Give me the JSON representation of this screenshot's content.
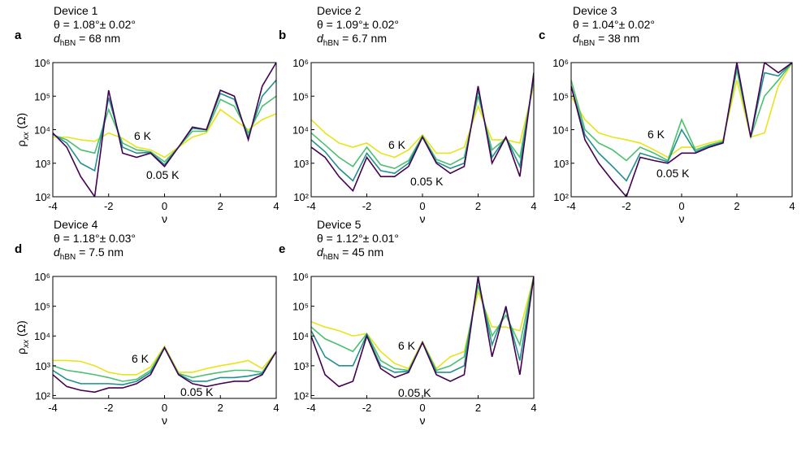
{
  "chart_data": [
    {
      "type": "line",
      "panel": "a",
      "device": "Device 1",
      "angle": "θ = 1.08°± 0.02°",
      "thickness": {
        "symbol": "d",
        "subscript": "hBN",
        "text": " = 68 nm"
      },
      "y_label": {
        "symbol": "ρ",
        "subscript": "xx",
        "unit": " (Ω)"
      },
      "x_label": "ν",
      "log_y": true,
      "annotations": [
        "6 K",
        "0.05 K"
      ],
      "xlim": [
        -4,
        4
      ],
      "xticks": [
        -4,
        -2,
        0,
        2,
        4
      ],
      "ylim": [
        100,
        1000000
      ],
      "yticks": [
        {
          "value": 100,
          "label": "10²"
        },
        {
          "value": 1000,
          "label": "10³"
        },
        {
          "value": 10000,
          "label": "10⁴"
        },
        {
          "value": 100000,
          "label": "10⁵"
        },
        {
          "value": 1000000,
          "label": "10⁶"
        }
      ],
      "x": [
        -4,
        -3.5,
        -3,
        -2.5,
        -2,
        -1.5,
        -1,
        -0.5,
        0,
        0.5,
        1,
        1.5,
        2,
        2.5,
        3,
        3.5,
        4
      ],
      "series": [
        {
          "color": "#e8e419",
          "values": [
            6000,
            6000,
            5000,
            4500,
            8000,
            5500,
            3000,
            2500,
            1500,
            3000,
            6000,
            8000,
            40000,
            20000,
            10000,
            20000,
            30000
          ]
        },
        {
          "color": "#4ac16d",
          "values": [
            7000,
            5000,
            2500,
            2000,
            40000,
            4000,
            2500,
            2200,
            1100,
            3000,
            9000,
            9000,
            80000,
            50000,
            8000,
            50000,
            100000
          ]
        },
        {
          "color": "#22908d",
          "values": [
            7500,
            4000,
            1000,
            600,
            90000,
            3000,
            2000,
            2100,
            900,
            3000,
            11000,
            10000,
            120000,
            80000,
            6000,
            100000,
            300000
          ]
        },
        {
          "color": "#440154",
          "values": [
            8000,
            3000,
            400,
            100,
            150000,
            2000,
            1500,
            2000,
            800,
            3000,
            12000,
            10000,
            150000,
            100000,
            5000,
            200000,
            1000000
          ]
        }
      ]
    },
    {
      "type": "line",
      "panel": "b",
      "device": "Device 2",
      "angle": "θ = 1.09°± 0.02°",
      "thickness": {
        "symbol": "d",
        "subscript": "hBN",
        "text": " = 6.7 nm"
      },
      "x_label": "ν",
      "log_y": true,
      "annotations": [
        "6 K",
        "0.05 K"
      ],
      "xlim": [
        -4,
        4
      ],
      "xticks": [
        -4,
        -2,
        0,
        2,
        4
      ],
      "ylim": [
        100,
        1000000
      ],
      "yticks": [
        {
          "value": 100,
          "label": "10²"
        },
        {
          "value": 1000,
          "label": "10³"
        },
        {
          "value": 10000,
          "label": "10⁴"
        },
        {
          "value": 100000,
          "label": "10⁵"
        },
        {
          "value": 1000000,
          "label": "10⁶"
        }
      ],
      "x": [
        -4,
        -3.5,
        -3,
        -2.5,
        -2,
        -1.5,
        -1,
        -0.5,
        0,
        0.5,
        1,
        1.5,
        2,
        2.5,
        3,
        3.5,
        4
      ],
      "series": [
        {
          "color": "#e8e419",
          "values": [
            20000,
            8000,
            4000,
            3000,
            4000,
            2000,
            1500,
            2500,
            7000,
            2000,
            2000,
            3000,
            50000,
            5000,
            5000,
            4000,
            200000
          ]
        },
        {
          "color": "#4ac16d",
          "values": [
            8000,
            3500,
            1500,
            800,
            3000,
            900,
            700,
            1200,
            6500,
            1300,
            900,
            1500,
            100000,
            2500,
            5500,
            1500,
            300000
          ]
        },
        {
          "color": "#22908d",
          "values": [
            5000,
            2200,
            700,
            300,
            2000,
            600,
            500,
            1000,
            6200,
            1100,
            700,
            1000,
            150000,
            1500,
            6000,
            800,
            400000
          ]
        },
        {
          "color": "#440154",
          "values": [
            3000,
            1500,
            400,
            150,
            1500,
            400,
            400,
            800,
            6000,
            1000,
            500,
            800,
            200000,
            1000,
            6000,
            400,
            500000
          ]
        }
      ]
    },
    {
      "type": "line",
      "panel": "c",
      "device": "Device 3",
      "angle": "θ = 1.04°± 0.02°",
      "thickness": {
        "symbol": "d",
        "subscript": "hBN",
        "text": " = 38 nm"
      },
      "x_label": "ν",
      "log_y": true,
      "annotations": [
        "6 K",
        "0.05 K"
      ],
      "xlim": [
        -4,
        4
      ],
      "xticks": [
        -4,
        -2,
        0,
        2,
        4
      ],
      "ylim": [
        100,
        1000000
      ],
      "yticks": [
        {
          "value": 100,
          "label": "10²"
        },
        {
          "value": 1000,
          "label": "10³"
        },
        {
          "value": 10000,
          "label": "10⁴"
        },
        {
          "value": 100000,
          "label": "10⁵"
        },
        {
          "value": 1000000,
          "label": "10⁶"
        }
      ],
      "x": [
        -4,
        -3.5,
        -3,
        -2.5,
        -2,
        -1.5,
        -1,
        -0.5,
        0,
        0.5,
        1,
        1.5,
        2,
        2.5,
        3,
        3.5,
        4
      ],
      "series": [
        {
          "color": "#e8e419",
          "values": [
            100000,
            20000,
            8000,
            6000,
            5000,
            4000,
            2500,
            1500,
            3000,
            3000,
            4000,
            5000,
            300000,
            6000,
            8000,
            200000,
            1000000
          ]
        },
        {
          "color": "#4ac16d",
          "values": [
            300000,
            10000,
            4000,
            2500,
            1200,
            3000,
            2000,
            1200,
            20000,
            2500,
            3500,
            4500,
            600000,
            6000,
            100000,
            300000,
            1000000
          ]
        },
        {
          "color": "#22908d",
          "values": [
            200000,
            7000,
            2000,
            800,
            300,
            2000,
            1500,
            1100,
            10000,
            2200,
            3200,
            4200,
            800000,
            6000,
            500000,
            400000,
            1000000
          ]
        },
        {
          "color": "#440154",
          "values": [
            200000,
            5000,
            1000,
            300,
            100,
            1500,
            1200,
            1000,
            2000,
            2000,
            3000,
            4000,
            1000000,
            6000,
            1000000,
            500000,
            1000000
          ]
        }
      ]
    },
    {
      "type": "line",
      "panel": "d",
      "device": "Device 4",
      "angle": "θ = 1.18°± 0.03°",
      "thickness": {
        "symbol": "d",
        "subscript": "hBN",
        "text": " = 7.5 nm"
      },
      "y_label": {
        "symbol": "ρ",
        "subscript": "xx",
        "unit": " (Ω)"
      },
      "x_label": "ν",
      "log_y": true,
      "annotations": [
        "6 K",
        "0.05 K"
      ],
      "xlim": [
        -4,
        4
      ],
      "xticks": [
        -4,
        -2,
        0,
        2,
        4
      ],
      "ylim": [
        80,
        1000000
      ],
      "yticks": [
        {
          "value": 100,
          "label": "10²"
        },
        {
          "value": 1000,
          "label": "10³"
        },
        {
          "value": 10000,
          "label": "10⁴"
        },
        {
          "value": 100000,
          "label": "10⁵"
        },
        {
          "value": 1000000,
          "label": "10⁶"
        }
      ],
      "x": [
        -4,
        -3.5,
        -3,
        -2.5,
        -2,
        -1.5,
        -1,
        -0.5,
        0,
        0.5,
        1,
        1.5,
        2,
        2.5,
        3,
        3.5,
        4
      ],
      "series": [
        {
          "color": "#e8e419",
          "values": [
            1500,
            1500,
            1400,
            1000,
            600,
            500,
            500,
            900,
            4500,
            600,
            600,
            800,
            1000,
            1200,
            1500,
            800,
            3000
          ]
        },
        {
          "color": "#4ac16d",
          "values": [
            1000,
            700,
            600,
            500,
            400,
            300,
            350,
            700,
            4200,
            550,
            400,
            500,
            600,
            700,
            700,
            600,
            3000
          ]
        },
        {
          "color": "#22908d",
          "values": [
            700,
            350,
            250,
            250,
            250,
            230,
            300,
            600,
            4100,
            520,
            300,
            300,
            400,
            400,
            450,
            550,
            3000
          ]
        },
        {
          "color": "#440154",
          "values": [
            500,
            200,
            150,
            130,
            180,
            180,
            250,
            500,
            4000,
            500,
            250,
            200,
            250,
            300,
            300,
            500,
            3000
          ]
        }
      ]
    },
    {
      "type": "line",
      "panel": "e",
      "device": "Device 5",
      "angle": "θ = 1.12°± 0.01°",
      "thickness": {
        "symbol": "d",
        "subscript": "hBN",
        "text": " = 45 nm"
      },
      "x_label": "ν",
      "log_y": true,
      "annotations": [
        "6 K",
        "0.05 K"
      ],
      "xlim": [
        -4,
        4
      ],
      "xticks": [
        -4,
        -2,
        0,
        2,
        4
      ],
      "ylim": [
        80,
        1000000
      ],
      "yticks": [
        {
          "value": 100,
          "label": "10²"
        },
        {
          "value": 1000,
          "label": "10³"
        },
        {
          "value": 10000,
          "label": "10⁴"
        },
        {
          "value": 100000,
          "label": "10⁵"
        },
        {
          "value": 1000000,
          "label": "10⁶"
        }
      ],
      "x": [
        -4,
        -3.5,
        -3,
        -2.5,
        -2,
        -1.5,
        -1,
        -0.5,
        0,
        0.5,
        1,
        1.5,
        2,
        2.5,
        3,
        3.5,
        4
      ],
      "series": [
        {
          "color": "#e8e419",
          "values": [
            30000,
            20000,
            15000,
            10000,
            12000,
            3000,
            1200,
            800,
            6500,
            800,
            2000,
            3000,
            300000,
            20000,
            20000,
            15000,
            1000000
          ]
        },
        {
          "color": "#4ac16d",
          "values": [
            20000,
            8000,
            5000,
            3000,
            12000,
            1500,
            800,
            700,
            6200,
            700,
            1000,
            2000,
            500000,
            10000,
            50000,
            5000,
            1000000
          ]
        },
        {
          "color": "#22908d",
          "values": [
            15000,
            2000,
            1000,
            1000,
            11000,
            1000,
            600,
            650,
            6100,
            600,
            600,
            1000,
            800000,
            5000,
            80000,
            1500,
            1000000
          ]
        },
        {
          "color": "#440154",
          "values": [
            10000,
            500,
            200,
            300,
            10000,
            800,
            400,
            600,
            6000,
            500,
            300,
            500,
            1000000,
            2000,
            100000,
            500,
            1000000
          ]
        }
      ]
    }
  ]
}
